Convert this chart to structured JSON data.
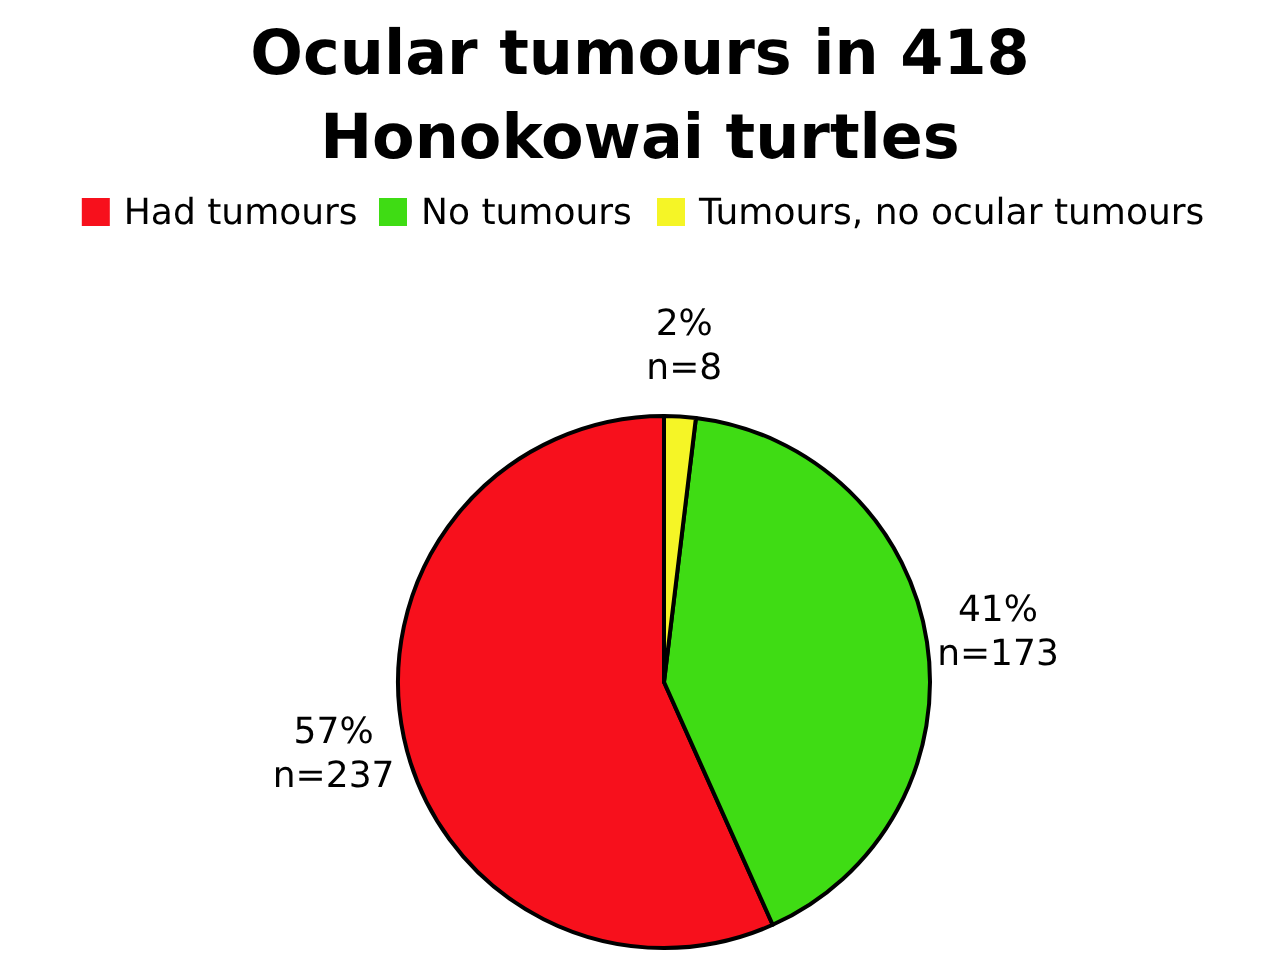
{
  "chart_data": {
    "type": "pie",
    "title": "Ocular tumours in 418 Honokowai turtles",
    "categories": [
      "Had tumours",
      "No tumours",
      "Tumours, no ocular tumours"
    ],
    "values": [
      237,
      173,
      8
    ],
    "colors": [
      "#f7101c",
      "#3fdc14",
      "#f5f526"
    ],
    "value_labels": [
      "57%\nn=237",
      "41%\nn=173",
      "2%\nn=8"
    ],
    "legend": "top"
  }
}
